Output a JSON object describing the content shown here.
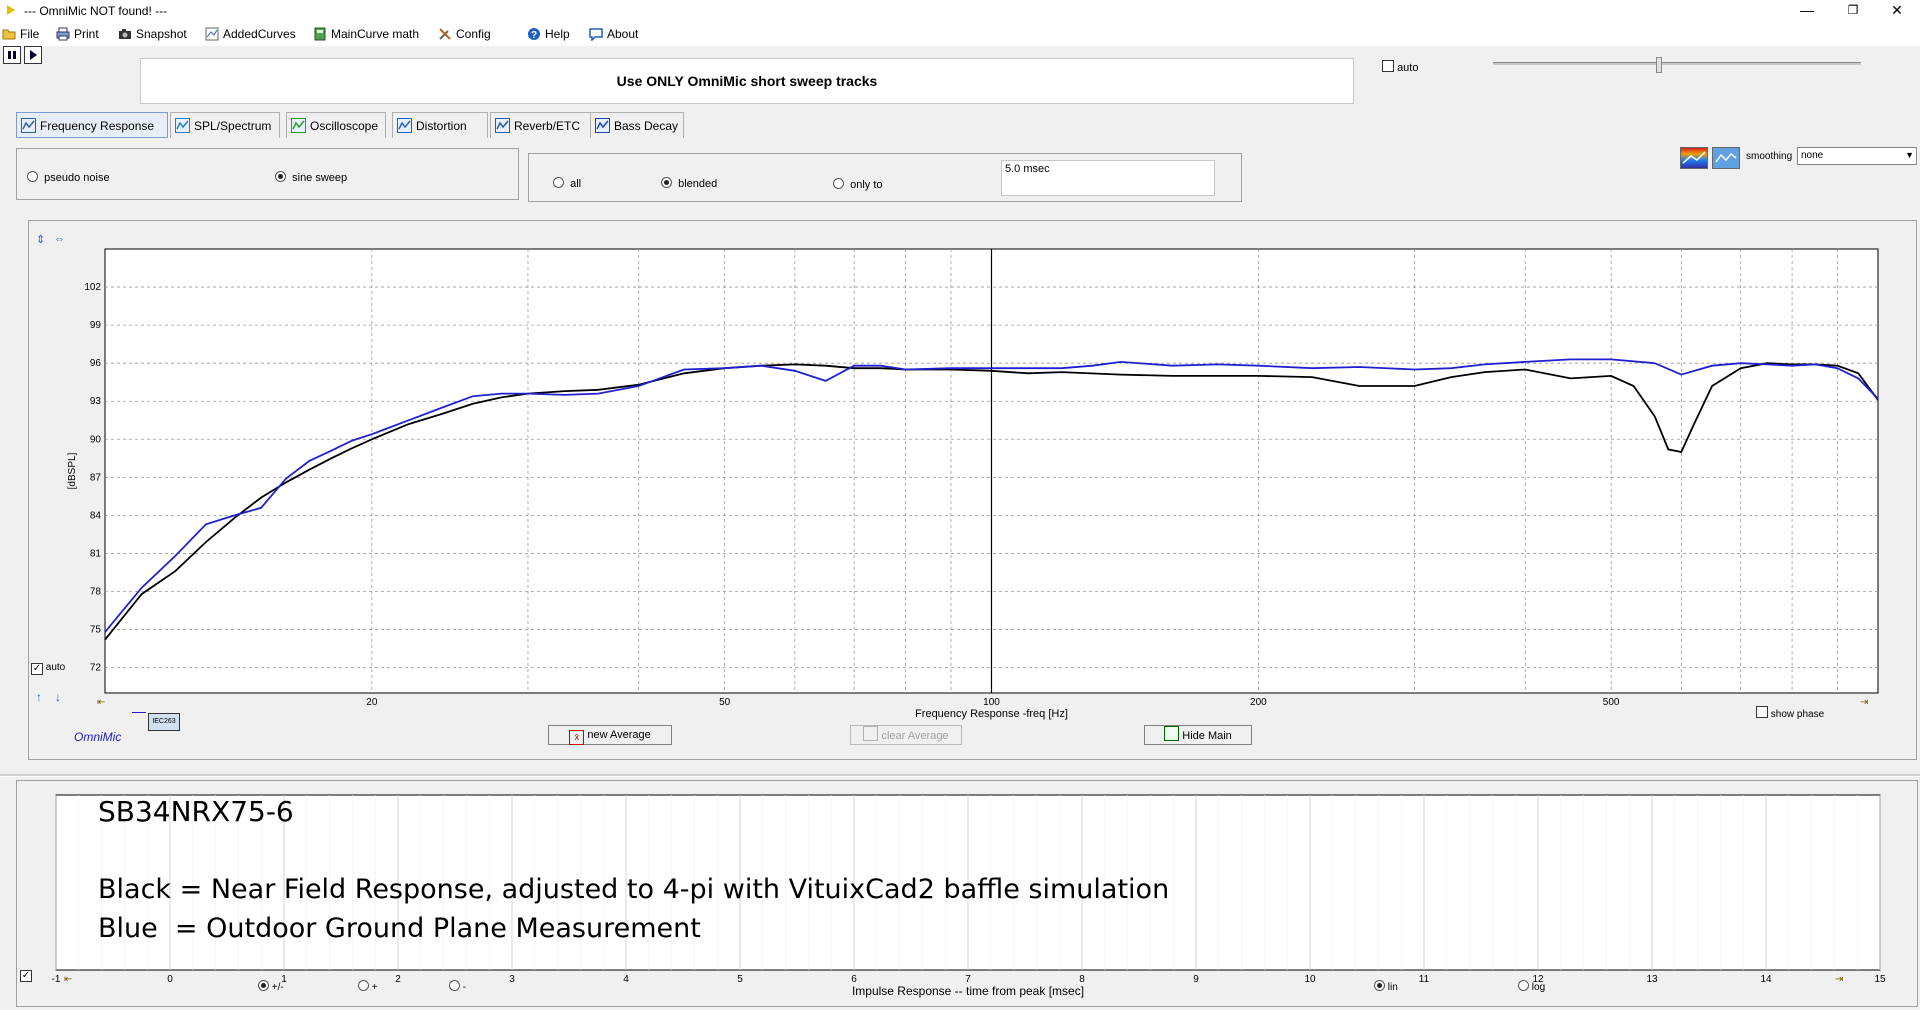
{
  "window": {
    "title": "--- OmniMic NOT found! ---",
    "min_glyph": "—",
    "max_glyph": "❐",
    "close_glyph": "✕"
  },
  "menu": {
    "file": "File",
    "print": "Print",
    "snapshot": "Snapshot",
    "added_curves": "AddedCurves",
    "maincurve_math": "MainCurve math",
    "config": "Config",
    "help": "Help",
    "about": "About"
  },
  "top": {
    "banner": "Use ONLY OmniMic short sweep tracks",
    "auto_label": "auto"
  },
  "tabs": [
    {
      "label": "Frequency Response",
      "icon": "freq-response-icon"
    },
    {
      "label": "SPL/Spectrum",
      "icon": "spl-icon"
    },
    {
      "label": "Oscilloscope",
      "icon": "oscilloscope-icon"
    },
    {
      "label": "Distortion",
      "icon": "distortion-icon"
    },
    {
      "label": "Reverb/ETC",
      "icon": "reverb-icon"
    },
    {
      "label": "Bass Decay",
      "icon": "bass-decay-icon"
    }
  ],
  "signal": {
    "pseudo_noise": "pseudo noise",
    "sine_sweep": "sine sweep",
    "selected": "sine sweep"
  },
  "window_opts": {
    "all": "all",
    "blended": "blended",
    "only_to": "only to",
    "selected": "blended",
    "time_value": "5.0 msec"
  },
  "smoothing": {
    "label": "smoothing",
    "value": "none"
  },
  "plot": {
    "auto_label": "auto",
    "show_phase": "show phase",
    "omnimic_label": "OmniMic",
    "iec_badge": "IEC263",
    "new_average": "new Average",
    "clear_average": "clear Average",
    "hide_main": "Hide Main"
  },
  "chart_data": {
    "type": "line",
    "xlabel": "Frequency Response -freq [Hz]",
    "ylabel": "[dBSPL]",
    "x_scale": "log",
    "xlim": [
      10,
      1000
    ],
    "ylim": [
      70,
      105
    ],
    "x_ticks": [
      20,
      50,
      100,
      200,
      500
    ],
    "y_ticks": [
      72,
      75,
      78,
      81,
      84,
      87,
      90,
      93,
      96,
      99,
      102
    ],
    "grid": true,
    "cursor_x": 100,
    "series": [
      {
        "color": "#000000",
        "x": [
          10,
          11,
          12,
          13,
          14,
          15,
          16,
          17,
          18,
          19,
          20,
          22,
          24,
          26,
          28,
          30,
          33,
          36,
          40,
          45,
          50,
          55,
          60,
          65,
          70,
          75,
          80,
          90,
          100,
          110,
          120,
          140,
          160,
          180,
          200,
          230,
          260,
          300,
          330,
          360,
          400,
          450,
          500,
          530,
          560,
          580,
          600,
          620,
          650,
          700,
          750,
          800,
          850,
          900,
          950,
          1000
        ],
        "y": [
          74.2,
          77.8,
          79.6,
          81.9,
          83.8,
          85.4,
          86.6,
          87.6,
          88.5,
          89.3,
          90.0,
          91.2,
          92.0,
          92.8,
          93.3,
          93.6,
          93.8,
          93.9,
          94.3,
          95.2,
          95.6,
          95.8,
          95.9,
          95.8,
          95.6,
          95.6,
          95.5,
          95.5,
          95.4,
          95.2,
          95.3,
          95.1,
          95.0,
          95.0,
          95.0,
          94.9,
          94.2,
          94.2,
          94.9,
          95.3,
          95.5,
          94.8,
          95.0,
          94.2,
          91.8,
          89.2,
          89.0,
          91.2,
          94.2,
          95.6,
          96.0,
          95.9,
          95.9,
          95.8,
          95.2,
          93.1
        ]
      },
      {
        "color": "#2020d0",
        "x": [
          10,
          11,
          12,
          13,
          14,
          15,
          16,
          17,
          18,
          19,
          20,
          22,
          24,
          26,
          28,
          30,
          33,
          36,
          40,
          45,
          50,
          55,
          60,
          65,
          70,
          75,
          80,
          90,
          100,
          110,
          120,
          130,
          140,
          160,
          180,
          200,
          230,
          260,
          300,
          330,
          360,
          400,
          450,
          500,
          560,
          600,
          650,
          700,
          750,
          800,
          850,
          900,
          950,
          1000
        ],
        "y": [
          74.8,
          78.3,
          80.8,
          83.3,
          84.0,
          84.6,
          86.9,
          88.3,
          89.1,
          89.9,
          90.4,
          91.5,
          92.5,
          93.4,
          93.6,
          93.6,
          93.5,
          93.6,
          94.2,
          95.5,
          95.6,
          95.8,
          95.4,
          94.6,
          95.8,
          95.8,
          95.5,
          95.6,
          95.6,
          95.6,
          95.6,
          95.8,
          96.1,
          95.8,
          95.9,
          95.8,
          95.6,
          95.7,
          95.5,
          95.6,
          95.9,
          96.1,
          96.3,
          96.3,
          96.0,
          95.1,
          95.8,
          96.0,
          95.9,
          95.8,
          95.9,
          95.6,
          94.8,
          93.2
        ]
      }
    ]
  },
  "notes": {
    "line1": "SB34NRX75-6",
    "line2": "Black = Near Field Response, adjusted to 4-pi with VituixCad2 baffle simulation",
    "line3": "Blue  = Outdoor Ground Plane Measurement"
  },
  "impulse": {
    "xlabel": "Impulse Response  -- time from peak [msec]",
    "ticks": [
      "-1",
      "0",
      "1",
      "2",
      "3",
      "4",
      "5",
      "6",
      "7",
      "8",
      "9",
      "10",
      "11",
      "12",
      "13",
      "14",
      "15"
    ],
    "opt_pm": "+/-",
    "opt_plus": "+",
    "opt_minus": "-",
    "opt_lin": "lin",
    "opt_log": "log"
  }
}
